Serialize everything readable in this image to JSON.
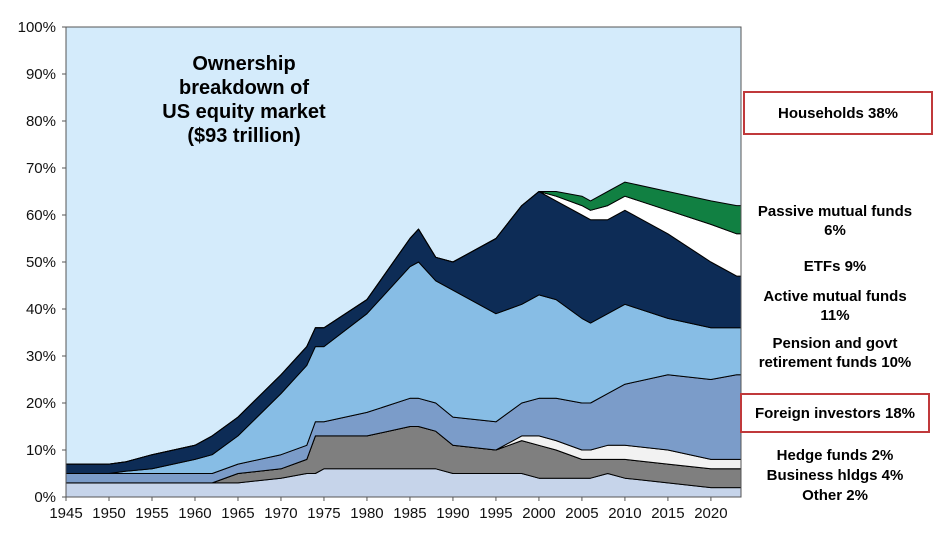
{
  "chart_data": {
    "type": "area",
    "stacked": true,
    "title": [
      "Ownership",
      "breakdown  of",
      "US equity market",
      "($93 trillion)"
    ],
    "x": [
      1945,
      1950,
      1952,
      1955,
      1960,
      1962,
      1965,
      1970,
      1973,
      1974,
      1975,
      1980,
      1985,
      1986,
      1988,
      1990,
      1995,
      1998,
      2000,
      2002,
      2005,
      2006,
      2008,
      2010,
      2015,
      2020,
      2023
    ],
    "xticks": [
      1945,
      1950,
      1955,
      1960,
      1965,
      1970,
      1975,
      1980,
      1985,
      1990,
      1995,
      2000,
      2005,
      2010,
      2015,
      2020
    ],
    "yticks": [
      "0%",
      "10%",
      "20%",
      "30%",
      "40%",
      "50%",
      "60%",
      "70%",
      "80%",
      "90%",
      "100%"
    ],
    "ylim": [
      0,
      100
    ],
    "xlim": [
      1945,
      2023.5
    ],
    "background_series": "Households",
    "series": [
      {
        "name": "Other",
        "color": "#c6d4ea",
        "values": [
          3,
          3,
          3,
          3,
          3,
          3,
          3,
          4,
          5,
          5,
          6,
          6,
          6,
          6,
          6,
          5,
          5,
          5,
          4,
          4,
          4,
          4,
          5,
          4,
          3,
          2,
          2
        ]
      },
      {
        "name": "Business hldgs",
        "color": "#7f7f7f",
        "values": [
          0,
          0,
          0,
          0,
          0,
          0,
          2,
          2,
          3,
          8,
          7,
          7,
          9,
          9,
          8,
          6,
          5,
          7,
          7,
          6,
          4,
          4,
          3,
          4,
          4,
          4,
          4
        ]
      },
      {
        "name": "Hedge funds",
        "color": "#000000",
        "values": [
          0,
          0,
          0,
          0,
          0,
          0,
          0,
          0,
          0,
          0,
          0,
          0,
          0,
          0,
          0,
          0,
          0,
          0,
          0,
          0,
          0,
          0,
          0,
          0,
          0,
          0,
          0
        ]
      },
      {
        "name": "Hedge funds",
        "color": "#f2f2f2",
        "values": [
          0,
          0,
          0,
          0,
          0,
          0,
          0,
          0,
          0,
          0,
          0,
          0,
          0,
          0,
          0,
          0,
          0,
          1,
          2,
          2,
          2,
          2,
          3,
          3,
          3,
          2,
          2
        ]
      },
      {
        "name": "Foreign investors",
        "color": "#7b9cc9",
        "values": [
          2,
          2,
          2,
          2,
          2,
          2,
          2,
          3,
          3,
          3,
          3,
          5,
          6,
          6,
          6,
          6,
          6,
          7,
          8,
          9,
          10,
          10,
          11,
          13,
          16,
          17,
          18
        ]
      },
      {
        "name": "Pension and govt retirement funds",
        "color": "#87bde5",
        "values": [
          0,
          0,
          0.5,
          1,
          3,
          4,
          6,
          13,
          17,
          16,
          16,
          21,
          28,
          29,
          26,
          27,
          23,
          21,
          22,
          21,
          18,
          17,
          17,
          17,
          12,
          11,
          10
        ]
      },
      {
        "name": "Active mutual funds",
        "color": "#0d2c56",
        "values": [
          2,
          2,
          2,
          3,
          3,
          4,
          4,
          4,
          4,
          4,
          4,
          3,
          6,
          7,
          5,
          6,
          16,
          21,
          22,
          21,
          22,
          22,
          20,
          20,
          18,
          14,
          11
        ]
      },
      {
        "name": "ETFs",
        "color": "#ffffff",
        "values": [
          0,
          0,
          0,
          0,
          0,
          0,
          0,
          0,
          0,
          0,
          0,
          0,
          0,
          0,
          0,
          0,
          0,
          0,
          0,
          1,
          2,
          2,
          3,
          3,
          5,
          8,
          9
        ]
      },
      {
        "name": "Passive mutual funds",
        "color": "#118042",
        "values": [
          0,
          0,
          0,
          0,
          0,
          0,
          0,
          0,
          0,
          0,
          0,
          0,
          0,
          0,
          0,
          0,
          0,
          0,
          0,
          1,
          2,
          2,
          3,
          3,
          4,
          5,
          6
        ]
      }
    ]
  },
  "legend": {
    "households": "Households 38%",
    "passive": [
      "Passive mutual funds",
      "6%"
    ],
    "etfs": "ETFs 9%",
    "active": [
      "Active mutual funds",
      "11%"
    ],
    "pension": [
      "Pension and govt",
      "retirement funds 10%"
    ],
    "foreign": "Foreign investors 18%",
    "hedge": "Hedge funds 2%",
    "business": "Business hldgs 4%",
    "other": "Other 2%"
  },
  "colors": {
    "plot_background": "#d4ebfb",
    "highlight_border": "#c0393b"
  }
}
